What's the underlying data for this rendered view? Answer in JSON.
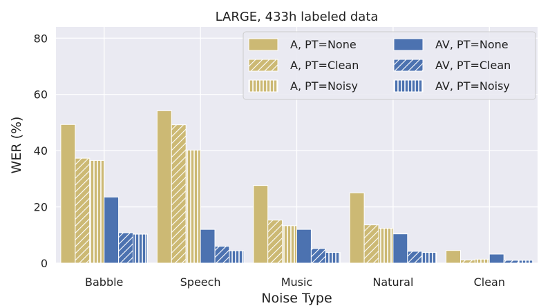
{
  "chart_data": {
    "type": "bar",
    "title": "LARGE, 433h labeled data",
    "xlabel": "Noise Type",
    "ylabel": "WER (%)",
    "ylim": [
      0,
      84
    ],
    "yticks": [
      0,
      20,
      40,
      60,
      80
    ],
    "grid": true,
    "legend_placement": "top-right",
    "categories": [
      "Babble",
      "Speech",
      "Music",
      "Natural",
      "Clean"
    ],
    "series": [
      {
        "name": "A, PT=None",
        "color": "#ccb974",
        "hatch": "none",
        "values": [
          49.3,
          54.2,
          27.6,
          25.0,
          4.5
        ]
      },
      {
        "name": "A, PT=Clean",
        "color": "#ccb974",
        "hatch": "diagonal",
        "values": [
          37.3,
          49.2,
          15.3,
          13.6,
          1.1
        ]
      },
      {
        "name": "A, PT=Noisy",
        "color": "#ccb974",
        "hatch": "vertical",
        "values": [
          36.5,
          40.2,
          13.3,
          12.4,
          1.4
        ]
      },
      {
        "name": "AV, PT=None",
        "color": "#4c72b0",
        "hatch": "none",
        "values": [
          23.5,
          12.0,
          12.0,
          10.4,
          3.2
        ]
      },
      {
        "name": "AV, PT=Clean",
        "color": "#4c72b0",
        "hatch": "diagonal",
        "values": [
          10.8,
          6.0,
          5.2,
          4.2,
          1.0
        ]
      },
      {
        "name": "AV, PT=Noisy",
        "color": "#4c72b0",
        "hatch": "vertical",
        "values": [
          10.3,
          4.4,
          3.8,
          3.8,
          1.0
        ]
      }
    ]
  }
}
